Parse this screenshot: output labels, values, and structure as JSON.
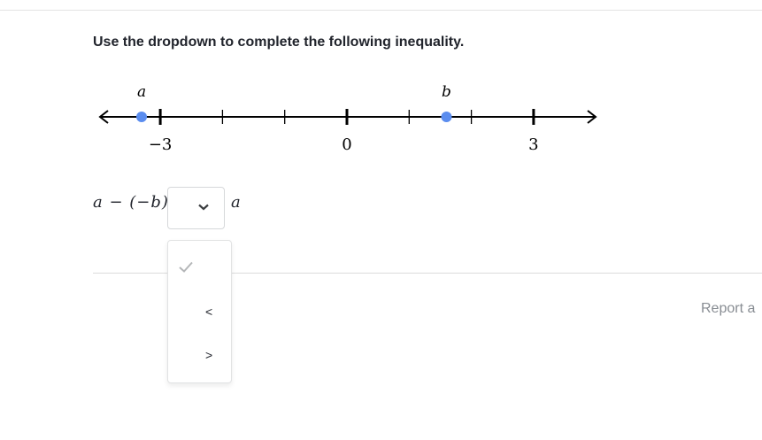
{
  "prompt": "Use the dropdown to complete the following inequality.",
  "number_line": {
    "min_tick": -3,
    "max_tick": 3,
    "tick_step": 1,
    "labeled_ticks": [
      -3,
      0,
      3
    ],
    "labels": {
      "-3": "−3",
      "0": "0",
      "3": "3"
    },
    "points": [
      {
        "name": "a",
        "value": -3.3
      },
      {
        "name": "b",
        "value": 1.6
      }
    ],
    "point_color": "#5b8def"
  },
  "inequality": {
    "left": "a − (−b)",
    "right": "a"
  },
  "dropdown": {
    "selected": "",
    "options": [
      {
        "label": "",
        "icon": "check-icon"
      },
      {
        "label": "<"
      },
      {
        "label": ">"
      }
    ]
  },
  "footer": {
    "report": "Report a"
  }
}
